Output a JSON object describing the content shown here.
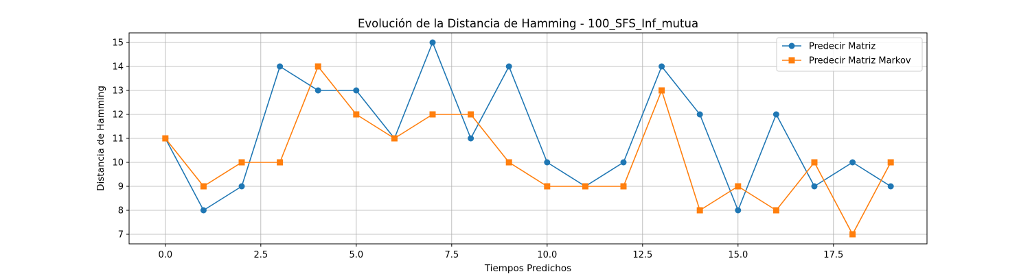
{
  "chart_data": {
    "type": "line",
    "title": "Evolución de la Distancia de Hamming - 100_SFS_Inf_mutua",
    "xlabel": "Tiempos Predichos",
    "ylabel": "Distancia de Hamming",
    "x": [
      0,
      1,
      2,
      3,
      4,
      5,
      6,
      7,
      8,
      9,
      10,
      11,
      12,
      13,
      14,
      15,
      16,
      17,
      18,
      19
    ],
    "xlim": [
      -0.95,
      19.95
    ],
    "ylim": [
      6.6,
      15.4
    ],
    "xticks": [
      0,
      2.5,
      5,
      7.5,
      10,
      12.5,
      15,
      17.5
    ],
    "xtick_labels": [
      "0.0",
      "2.5",
      "5.0",
      "7.5",
      "10.0",
      "12.5",
      "15.0",
      "17.5"
    ],
    "yticks": [
      7,
      8,
      9,
      10,
      11,
      12,
      13,
      14,
      15
    ],
    "ytick_labels": [
      "7",
      "8",
      "9",
      "10",
      "11",
      "12",
      "13",
      "14",
      "15"
    ],
    "grid": true,
    "legend_position": "top-right",
    "series": [
      {
        "name": "Predecir Matriz",
        "marker": "circle",
        "color": "#1f77b4",
        "values": [
          11,
          8,
          9,
          14,
          13,
          13,
          11,
          15,
          11,
          14,
          10,
          9,
          10,
          14,
          12,
          8,
          12,
          9,
          10,
          9
        ]
      },
      {
        "name": "Predecir Matriz Markov",
        "marker": "square",
        "color": "#ff7f0e",
        "values": [
          11,
          9,
          10,
          10,
          14,
          12,
          11,
          12,
          12,
          10,
          9,
          9,
          9,
          13,
          8,
          9,
          8,
          10,
          7,
          10
        ]
      }
    ]
  }
}
